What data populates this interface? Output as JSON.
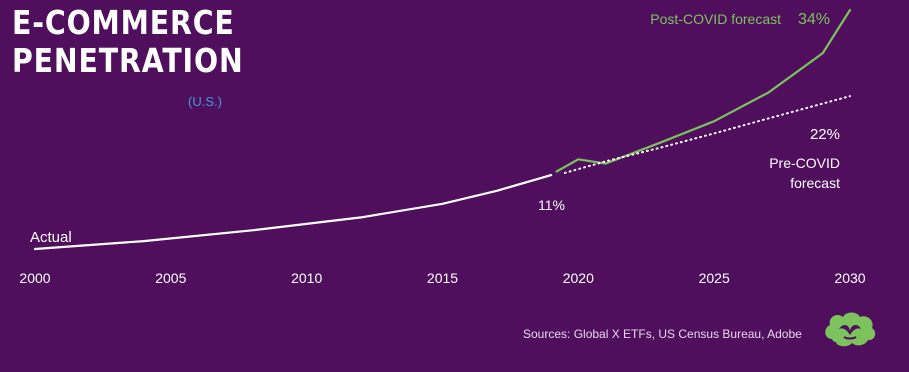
{
  "title_line1": "E-COMMERCE",
  "title_line2": "PENETRATION",
  "subtitle": "(U.S.)",
  "source": "Sources: Global X ETFs, US Census Bureau, Adobe",
  "colors": {
    "background": "#4f0f5d",
    "actual": "#ffffff",
    "post_covid": "#7cc35e",
    "pre_covid": "#ffffff",
    "subtitle": "#3f9bd8",
    "logo": "#7cc35e"
  },
  "chart_data": {
    "type": "line",
    "xlim": [
      2000,
      2030
    ],
    "ylim": [
      0,
      34
    ],
    "x_ticks": [
      "2000",
      "2005",
      "2010",
      "2015",
      "2020",
      "2025",
      "2030"
    ],
    "grid": false,
    "series": [
      {
        "key": "actual",
        "style": "solid",
        "points": [
          [
            2000,
            0.7
          ],
          [
            2004,
            1.8
          ],
          [
            2008,
            3.3
          ],
          [
            2012,
            5.1
          ],
          [
            2015,
            7.0
          ],
          [
            2017,
            8.8
          ],
          [
            2019,
            11
          ]
        ]
      },
      {
        "key": "post_covid",
        "style": "solid",
        "points": [
          [
            2019.2,
            11.5
          ],
          [
            2020,
            13.2
          ],
          [
            2021,
            12.6
          ],
          [
            2023,
            15.5
          ],
          [
            2025,
            18.5
          ],
          [
            2027,
            22.5
          ],
          [
            2029,
            28
          ],
          [
            2030,
            34
          ]
        ]
      },
      {
        "key": "pre_covid",
        "style": "dotted",
        "points": [
          [
            2019.5,
            11.3
          ],
          [
            2021,
            12.9
          ],
          [
            2023,
            14.8
          ],
          [
            2025,
            16.8
          ],
          [
            2027,
            18.9
          ],
          [
            2030,
            22
          ]
        ]
      }
    ],
    "labels": {
      "actual": "Actual",
      "end_actual": "11%",
      "post_covid_name": "Post-COVID forecast",
      "post_covid_end": "34%",
      "pre_covid_end": "22%",
      "pre_covid_name_1": "Pre-COVID",
      "pre_covid_name_2": "forecast"
    }
  }
}
